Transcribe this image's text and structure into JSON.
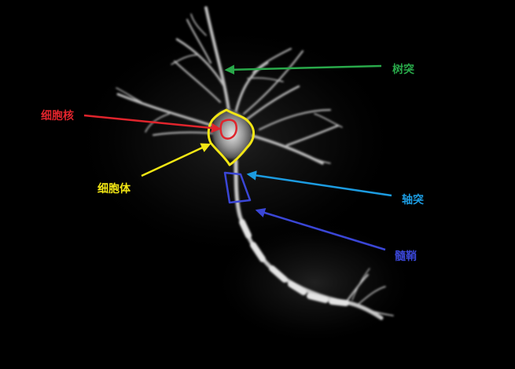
{
  "labels": {
    "dendrite": "树突",
    "nucleus": "细胞核",
    "soma": "细胞体",
    "axon": "轴突",
    "myelin": "髓鞘"
  },
  "colors": {
    "background": "#000000",
    "dendrite": "#29a94a",
    "nucleus": "#e0242c",
    "soma": "#f2e614",
    "axon": "#1c9be0",
    "myelin": "#3a46d6",
    "neuron": "#cfcfcf"
  }
}
